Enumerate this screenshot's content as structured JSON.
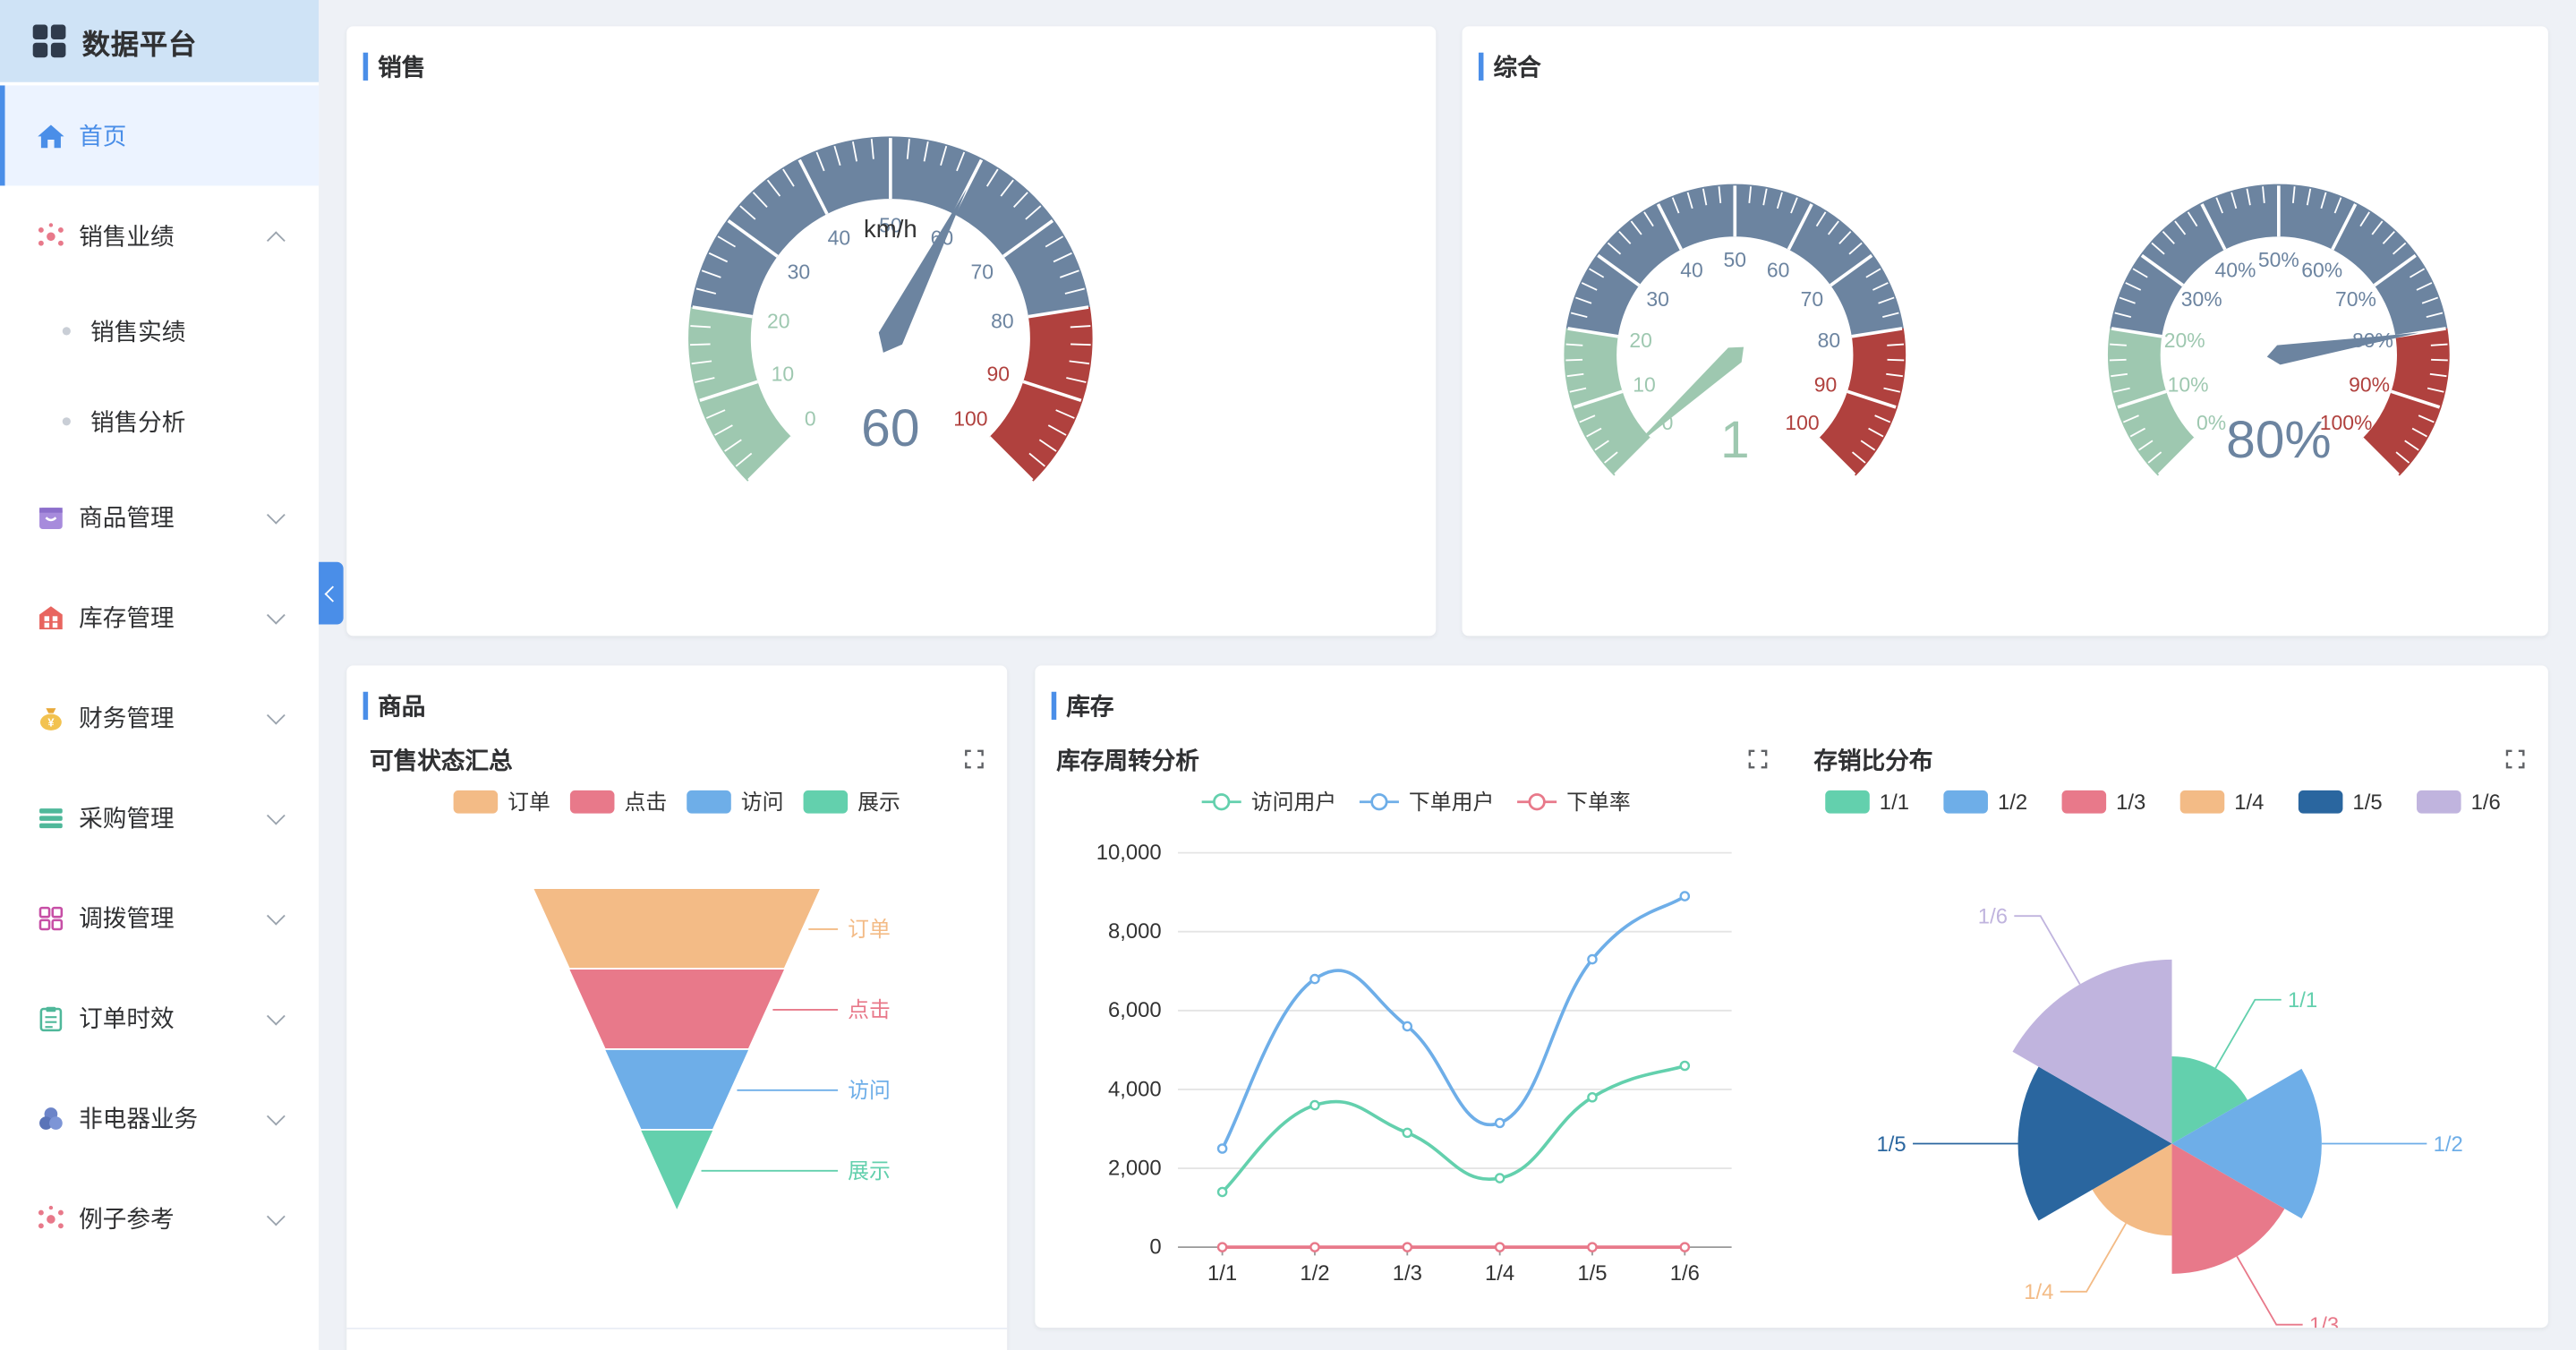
{
  "app": {
    "title": "数据平台"
  },
  "sidebar": {
    "items": [
      {
        "label": "首页",
        "icon": "home-icon",
        "active": true
      },
      {
        "label": "销售业绩",
        "icon": "scatter-dots-icon",
        "expanded": true,
        "children": [
          {
            "label": "销售实绩"
          },
          {
            "label": "销售分析"
          }
        ]
      },
      {
        "label": "商品管理",
        "icon": "shopping-bag-icon"
      },
      {
        "label": "库存管理",
        "icon": "warehouse-icon"
      },
      {
        "label": "财务管理",
        "icon": "money-bag-icon"
      },
      {
        "label": "采购管理",
        "icon": "list-icon"
      },
      {
        "label": "调拨管理",
        "icon": "app-grid-icon"
      },
      {
        "label": "订单时效",
        "icon": "clipboard-icon"
      },
      {
        "label": "非电器业务",
        "icon": "three-circles-icon"
      },
      {
        "label": "例子参考",
        "icon": "scatter-dots-icon"
      }
    ]
  },
  "colors": {
    "accent": "#4a8ee8",
    "gauge_green": "#9ec8b0",
    "gauge_blue": "#6c84a0",
    "gauge_red": "#b0413e",
    "funnel_order": "#f3bb86",
    "funnel_click": "#e8798a",
    "funnel_visit": "#6eaee8",
    "funnel_show": "#63d0ad",
    "line_visit": "#63d0ad",
    "line_order": "#6eaee8",
    "line_rate": "#e8798a",
    "pie_1": "#63d0ad",
    "pie_2": "#6eaee8",
    "pie_3": "#e8798a",
    "pie_4": "#f3bb86",
    "pie_5": "#2a669f",
    "pie_6": "#c0b4de"
  },
  "sales": {
    "title": "销售"
  },
  "overall": {
    "title": "综合"
  },
  "goods": {
    "title": "商品",
    "chart_title": "可售状态汇总"
  },
  "stock": {
    "title": "库存",
    "line_title": "库存周转分析",
    "pie_title": "存销比分布"
  },
  "chart_data": [
    {
      "type": "gauge",
      "unit": "km/h",
      "min": 0,
      "max": 100,
      "value": 60,
      "value_label": "60",
      "ticks": [
        "0",
        "10",
        "20",
        "30",
        "40",
        "50",
        "60",
        "70",
        "80",
        "90",
        "100"
      ]
    },
    {
      "type": "gauge",
      "min": 0,
      "max": 100,
      "value": 1,
      "value_label": "1",
      "ticks": [
        "0",
        "10",
        "20",
        "30",
        "40",
        "50",
        "60",
        "70",
        "80",
        "90",
        "100"
      ]
    },
    {
      "type": "gauge",
      "min": 0,
      "max": 100,
      "value": 80,
      "value_label": "80%",
      "ticks": [
        "0%",
        "10%",
        "20%",
        "30%",
        "40%",
        "50%",
        "60%",
        "70%",
        "80%",
        "90%",
        "100%"
      ]
    },
    {
      "type": "funnel",
      "legend": [
        "订单",
        "点击",
        "访问",
        "展示"
      ],
      "categories": [
        "订单",
        "点击",
        "访问",
        "展示"
      ],
      "values": [
        100,
        75,
        50,
        25
      ]
    },
    {
      "type": "line",
      "legend": [
        "访问用户",
        "下单用户",
        "下单率"
      ],
      "categories": [
        "1/1",
        "1/2",
        "1/3",
        "1/4",
        "1/5",
        "1/6"
      ],
      "yticks": [
        "0",
        "2,000",
        "4,000",
        "6,000",
        "8,000",
        "10,000"
      ],
      "ylim": [
        0,
        10000
      ],
      "series": [
        {
          "name": "访问用户",
          "values": [
            1400,
            3600,
            2900,
            1750,
            3800,
            4600
          ]
        },
        {
          "name": "下单用户",
          "values": [
            2500,
            6800,
            5600,
            3150,
            7300,
            8900
          ]
        },
        {
          "name": "下单率",
          "values": [
            0,
            0,
            0,
            0,
            0,
            0
          ]
        }
      ]
    },
    {
      "type": "pie",
      "rose": true,
      "legend": [
        "1/1",
        "1/2",
        "1/3",
        "1/4",
        "1/5",
        "1/6"
      ],
      "categories": [
        "1/1",
        "1/2",
        "1/3",
        "1/4",
        "1/5",
        "1/6"
      ],
      "values": [
        3.6,
        10.6,
        8.0,
        4.0,
        11.2,
        16.0
      ]
    }
  ]
}
